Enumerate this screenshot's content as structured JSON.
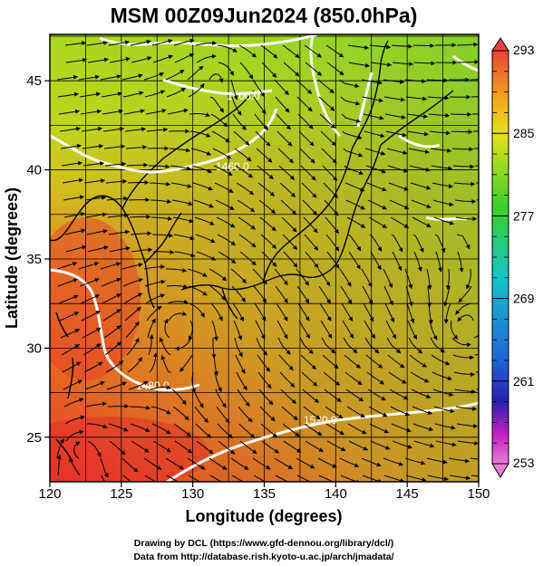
{
  "title": "MSM 00Z09Jun2024 (850.0hPa)",
  "x_axis": {
    "label": "Longitude (degrees)",
    "range": [
      120,
      150
    ],
    "ticks": [
      "120",
      "125",
      "130",
      "135",
      "140",
      "145",
      "150"
    ]
  },
  "y_axis": {
    "label": "Latitude  (degrees)",
    "range": [
      22.5,
      47.6
    ],
    "ticks": [
      "25",
      "30",
      "35",
      "40",
      "45"
    ]
  },
  "colorbar": {
    "range": [
      253,
      293
    ],
    "labels": [
      "293",
      "285",
      "277",
      "269",
      "261",
      "253"
    ],
    "colors": {
      "top": "#e8413a",
      "orange": "#f39a1f",
      "yellow": "#e7e21a",
      "green": "#39cf2a",
      "cyan": "#14c4c8",
      "blue": "#1f63d9",
      "navy": "#2a1fb0",
      "magenta": "#c51fc2",
      "bottom": "#ea7fd8"
    }
  },
  "contour_labels": [
    "1400.0",
    "1460.0",
    "1480.0",
    "1520.0"
  ],
  "credits": {
    "line1": "Drawing by DCL (https://www.gfd-dennou.org/library/dcl/)",
    "line2": "Data from http://database.rish.kyoto-u.ac.jp/arch/jmadata/"
  },
  "colors": {
    "cold_field": "#9ed21f",
    "mid_field": "#d8d81a",
    "warm_field": "#ef5a24",
    "hot_field": "#e62a26",
    "contour": "#ffffff",
    "streamline": "#000000"
  }
}
